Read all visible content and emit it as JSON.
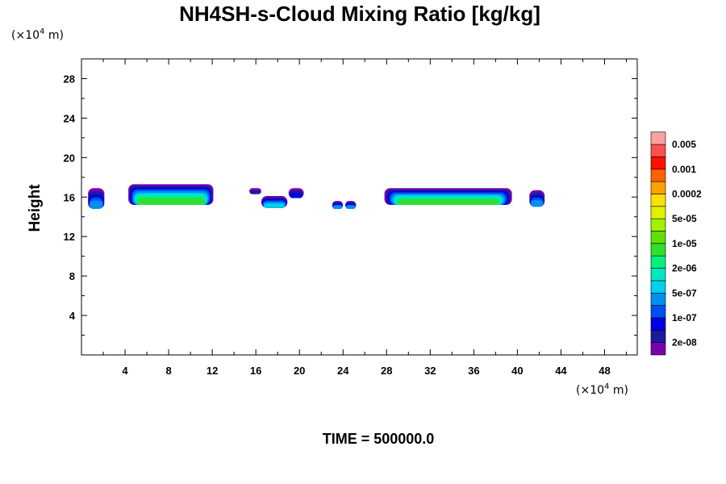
{
  "chart_data": {
    "type": "heatmap",
    "title": "NH4SH-s-Cloud Mixing Ratio [kg/kg]",
    "ylabel": "Height",
    "x_unit_label": "(×10",
    "x_unit_exp": "4",
    "x_unit_suffix": " m)",
    "y_unit_label": "(×10",
    "y_unit_exp": "4",
    "y_unit_suffix": " m)",
    "time_label": "TIME = 500000.0",
    "xlim": [
      0,
      51
    ],
    "ylim": [
      0,
      30
    ],
    "x_ticks": [
      4,
      8,
      12,
      16,
      20,
      24,
      28,
      32,
      36,
      40,
      44,
      48
    ],
    "x_tick_labels": [
      "4",
      "8",
      "12",
      "16",
      "20",
      "24",
      "28",
      "32",
      "36",
      "40",
      "44",
      "48"
    ],
    "y_ticks": [
      4,
      8,
      12,
      16,
      20,
      24,
      28
    ],
    "y_tick_labels": [
      "4",
      "8",
      "12",
      "16",
      "20",
      "24",
      "28"
    ],
    "colorbar": {
      "colors": [
        "#7a00b0",
        "#1a1aa0",
        "#0000e6",
        "#0050f0",
        "#0090f0",
        "#00d0f0",
        "#00e8c0",
        "#00f080",
        "#30e030",
        "#60e000",
        "#a0f000",
        "#e0f000",
        "#ffe000",
        "#ffa000",
        "#ff6000",
        "#ff1000",
        "#ff5050",
        "#ffa0a0"
      ],
      "labels": [
        "2e-08",
        "1e-07",
        "5e-07",
        "2e-06",
        "1e-05",
        "5e-05",
        "0.0002",
        "0.001",
        "0.005"
      ],
      "label_at_levels": [
        1,
        3,
        5,
        7,
        9,
        11,
        13,
        15,
        17
      ]
    },
    "cloud_cells": [
      {
        "x0": 0.6,
        "x1": 2.1,
        "top": 16.9,
        "base": 14.8,
        "peak": 4
      },
      {
        "x0": 4.3,
        "x1": 12.1,
        "top": 17.3,
        "base": 15.2,
        "peak": 8
      },
      {
        "x0": 15.4,
        "x1": 16.5,
        "top": 16.9,
        "base": 16.3,
        "peak": 1
      },
      {
        "x0": 16.5,
        "x1": 18.9,
        "top": 16.1,
        "base": 14.9,
        "peak": 5
      },
      {
        "x0": 19.0,
        "x1": 20.4,
        "top": 16.9,
        "base": 15.9,
        "peak": 2
      },
      {
        "x0": 23.0,
        "x1": 24.0,
        "top": 15.6,
        "base": 14.8,
        "peak": 4
      },
      {
        "x0": 24.2,
        "x1": 25.2,
        "top": 15.6,
        "base": 14.8,
        "peak": 4
      },
      {
        "x0": 27.8,
        "x1": 39.5,
        "top": 16.9,
        "base": 15.2,
        "peak": 8
      },
      {
        "x0": 41.1,
        "x1": 42.5,
        "top": 16.7,
        "base": 15.0,
        "peak": 4
      }
    ]
  }
}
